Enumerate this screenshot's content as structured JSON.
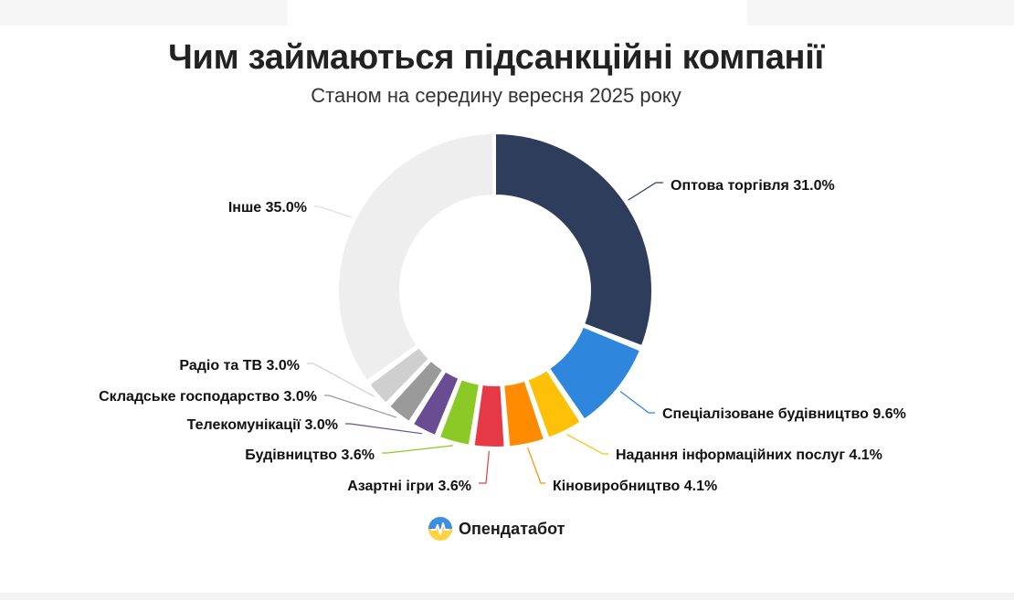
{
  "chart_data": {
    "type": "pie",
    "variant": "donut",
    "title": "Чим займаються підсанкційні компанії",
    "subtitle": "Станом на середину вересня 2025 року",
    "slices": [
      {
        "label": "Оптова торгівля 31.0%",
        "value": 31.0,
        "color": "#2e3d5c",
        "side": "right"
      },
      {
        "label": "Спеціалізоване будівництво 9.6%",
        "value": 9.6,
        "color": "#2f86dd",
        "side": "right"
      },
      {
        "label": "Надання інформаційних послуг 4.1%",
        "value": 4.1,
        "color": "#ffc107",
        "side": "right"
      },
      {
        "label": "Кіновиробництво 4.1%",
        "value": 4.1,
        "color": "#ff8c00",
        "side": "right"
      },
      {
        "label": "Азартні ігри 3.6%",
        "value": 3.6,
        "color": "#e63946",
        "side": "left"
      },
      {
        "label": "Будівництво 3.6%",
        "value": 3.6,
        "color": "#8ac926",
        "side": "left"
      },
      {
        "label": "Телекомунікації 3.0%",
        "value": 3.0,
        "color": "#6a4c93",
        "side": "left"
      },
      {
        "label": "Складське господарство 3.0%",
        "value": 3.0,
        "color": "#9a9a9a",
        "side": "left"
      },
      {
        "label": "Радіо та ТВ 3.0%",
        "value": 3.0,
        "color": "#cfcfcf",
        "side": "left"
      },
      {
        "label": "Інше 35.0%",
        "value": 35.0,
        "color": "#eeeeee",
        "side": "left"
      }
    ]
  },
  "brand": {
    "name": "Опендатабот",
    "icon": "opendatabot-logo-icon"
  }
}
